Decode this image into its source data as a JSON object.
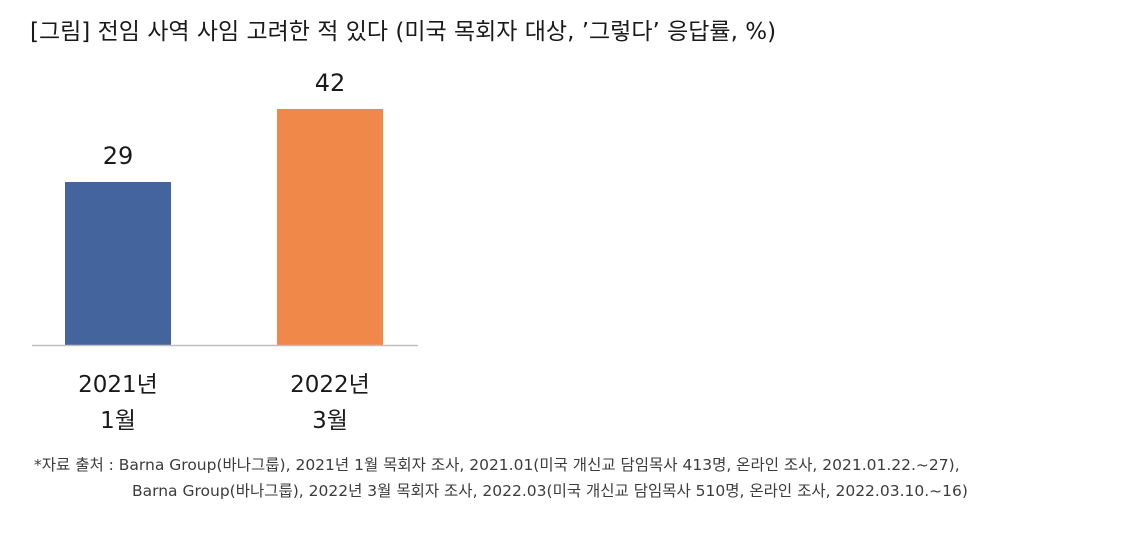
{
  "title": "[그림] 전임 사역 사임 고려한 적 있다 (미국 목회자 대상, ’그렇다’ 응답률, %)",
  "chart_data": {
    "type": "bar",
    "categories": [
      [
        "2021년",
        "1월"
      ],
      [
        "2022년",
        "3월"
      ]
    ],
    "values": [
      29,
      42
    ],
    "data_labels": [
      "29",
      "42"
    ],
    "colors": [
      "#44649e",
      "#f0884a"
    ],
    "ylim": [
      0,
      50
    ],
    "grid": false,
    "legend": "none"
  },
  "source": {
    "line1": "*자료 출처 : Barna Group(바나그룹), 2021년 1월 목회자 조사, 2021.01(미국 개신교 담임목사 413명, 온라인 조사, 2021.01.22.~27),",
    "line2": "Barna Group(바나그룹), 2022년 3월 목회자 조사, 2022.03(미국 개신교 담임목사 510명, 온라인 조사, 2022.03.10.~16)"
  }
}
